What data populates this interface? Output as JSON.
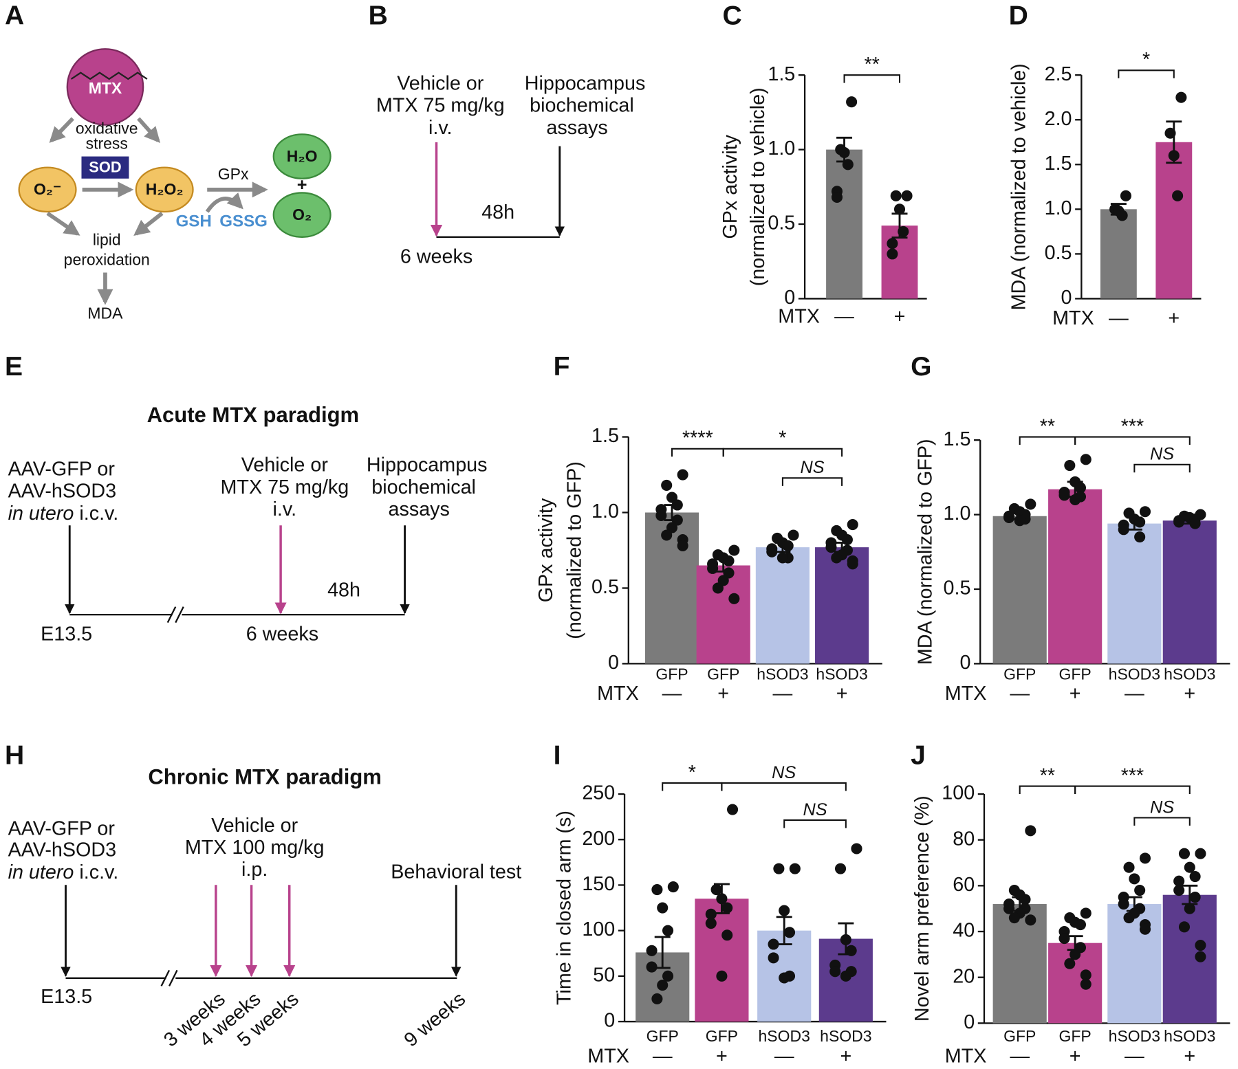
{
  "chart_data": [
    {
      "type": "bar",
      "panel": "C",
      "y_label": [
        "GPx activity",
        "(normalized to vehicle)"
      ],
      "x_label": "MTX",
      "categories": [
        "—",
        "+"
      ],
      "values": [
        1.0,
        0.49
      ],
      "errors": [
        0.08,
        0.08
      ],
      "points": [
        [
          1.32,
          1.0,
          0.98,
          0.9,
          0.72,
          0.68
        ],
        [
          0.69,
          0.69,
          0.6,
          0.45,
          0.37,
          0.3
        ]
      ],
      "colors": [
        "#7b7b7b",
        "#b8428c"
      ],
      "ylim": [
        0,
        1.5
      ],
      "yticks": [
        0,
        0.5,
        {
          "value": 1,
          "label": "1.0"
        },
        1.5
      ],
      "annotations": [
        "**"
      ]
    },
    {
      "type": "bar",
      "panel": "D",
      "y_label": [
        "MDA (normalized to vehicle)"
      ],
      "x_label": "MTX",
      "categories": [
        "—",
        "+"
      ],
      "values": [
        1.0,
        1.75
      ],
      "errors": [
        0.06,
        0.23
      ],
      "points": [
        [
          1.15,
          1.0,
          0.98,
          0.93
        ],
        [
          2.25,
          1.85,
          1.6,
          1.15
        ]
      ],
      "colors": [
        "#7b7b7b",
        "#b8428c"
      ],
      "ylim": [
        0,
        2.5
      ],
      "yticks": [
        0,
        0.5,
        {
          "value": 1,
          "label": "1.0"
        },
        1.5,
        {
          "value": 2,
          "label": "2.0"
        },
        2.5
      ],
      "annotations": [
        "*"
      ]
    },
    {
      "type": "bar",
      "panel": "F",
      "y_label": [
        "GPx activity",
        "(normalized to GFP)"
      ],
      "x_label": "MTX",
      "categories": [
        "GFP",
        "GFP",
        "hSOD3",
        "hSOD3"
      ],
      "mtx": [
        "—",
        "+",
        "—",
        "+"
      ],
      "values": [
        1.0,
        0.65,
        0.77,
        0.77
      ],
      "errors": [
        0.05,
        0.04,
        0.03,
        0.03
      ],
      "points": [
        [
          1.25,
          1.18,
          1.1,
          1.05,
          1.02,
          0.98,
          0.95,
          0.9,
          0.85,
          0.82,
          0.78
        ],
        [
          0.75,
          0.72,
          0.7,
          0.68,
          0.66,
          0.63,
          0.6,
          0.55,
          0.5,
          0.43
        ],
        [
          0.85,
          0.83,
          0.8,
          0.78,
          0.76,
          0.74,
          0.7,
          0.7
        ],
        [
          0.92,
          0.88,
          0.85,
          0.82,
          0.8,
          0.77,
          0.75,
          0.72,
          0.7,
          0.68,
          0.66
        ]
      ],
      "colors": [
        "#7b7b7b",
        "#b8428c",
        "#b6c3e6",
        "#5c3b8d"
      ],
      "ylim": [
        0,
        1.5
      ],
      "yticks": [
        0,
        0.5,
        {
          "value": 1,
          "label": "1.0"
        },
        1.5
      ],
      "annotations": [
        "****",
        "*",
        "NS"
      ]
    },
    {
      "type": "bar",
      "panel": "G",
      "y_label": [
        "MDA (normalized to GFP)"
      ],
      "x_label": "MTX",
      "categories": [
        "GFP",
        "GFP",
        "hSOD3",
        "hSOD3"
      ],
      "mtx": [
        "—",
        "+",
        "—",
        "+"
      ],
      "values": [
        0.99,
        1.17,
        0.94,
        0.96
      ],
      "errors": [
        0.02,
        0.05,
        0.04,
        0.02
      ],
      "points": [
        [
          1.07,
          1.04,
          1.02,
          1.0,
          0.99,
          0.98,
          0.97,
          0.96
        ],
        [
          1.37,
          1.33,
          1.22,
          1.18,
          1.15,
          1.13,
          1.12,
          1.1
        ],
        [
          1.02,
          1.01,
          0.97,
          0.95,
          0.93,
          0.9,
          0.85
        ],
        [
          1.0,
          0.99,
          0.98,
          0.97,
          0.96,
          0.95,
          0.94
        ]
      ],
      "colors": [
        "#7b7b7b",
        "#b8428c",
        "#b6c3e6",
        "#5c3b8d"
      ],
      "ylim": [
        0,
        1.5
      ],
      "yticks": [
        0,
        0.5,
        {
          "value": 1,
          "label": "1.0"
        },
        1.5
      ],
      "annotations": [
        "**",
        "***",
        "NS"
      ]
    },
    {
      "type": "bar",
      "panel": "I",
      "y_label": [
        "Time in closed arm (s)"
      ],
      "x_label": "MTX",
      "categories": [
        "GFP",
        "GFP",
        "hSOD3",
        "hSOD3"
      ],
      "mtx": [
        "—",
        "+",
        "—",
        "+"
      ],
      "values": [
        76,
        135,
        100,
        91
      ],
      "errors": [
        17,
        16,
        15,
        17
      ],
      "points": [
        [
          148,
          145,
          125,
          100,
          78,
          60,
          50,
          40,
          25
        ],
        [
          233,
          145,
          135,
          125,
          118,
          108,
          95,
          50
        ],
        [
          168,
          168,
          122,
          98,
          85,
          70,
          50,
          48
        ],
        [
          190,
          168,
          90,
          78,
          62,
          55,
          55,
          50
        ]
      ],
      "colors": [
        "#7b7b7b",
        "#b8428c",
        "#b6c3e6",
        "#5c3b8d"
      ],
      "ylim": [
        0,
        250
      ],
      "yticks": [
        0,
        50,
        100,
        150,
        200,
        250
      ],
      "annotations": [
        "*",
        "NS",
        "NS"
      ]
    },
    {
      "type": "bar",
      "panel": "J",
      "y_label": [
        "Novel arm preference (%)"
      ],
      "x_label": "MTX",
      "categories": [
        "GFP",
        "GFP",
        "hSOD3",
        "hSOD3"
      ],
      "mtx": [
        "—",
        "+",
        "—",
        "+"
      ],
      "values": [
        52,
        35,
        52,
        56
      ],
      "errors": [
        3,
        3,
        3,
        4
      ],
      "points": [
        [
          84,
          58,
          56,
          54,
          52,
          50,
          50,
          48,
          46,
          45
        ],
        [
          48,
          46,
          44,
          43,
          40,
          37,
          33,
          30,
          26,
          21,
          17
        ],
        [
          72,
          68,
          63,
          58,
          55,
          52,
          50,
          48,
          46,
          43,
          41
        ],
        [
          74,
          74,
          68,
          64,
          62,
          58,
          55,
          50,
          42,
          34,
          29
        ]
      ],
      "colors": [
        "#7b7b7b",
        "#b8428c",
        "#b6c3e6",
        "#5c3b8d"
      ],
      "ylim": [
        0,
        100
      ],
      "yticks": [
        0,
        20,
        40,
        60,
        80,
        100
      ],
      "annotations": [
        "**",
        "***",
        "NS"
      ]
    }
  ],
  "diagrams": {
    "a": {
      "panel": "A",
      "mtx": "MTX",
      "stress": [
        "oxidative",
        "stress"
      ],
      "sod": "SOD",
      "superoxide": "O₂⁻",
      "peroxide": "H₂O₂",
      "gpx": "GPx",
      "water": "H₂O",
      "plus": "+",
      "oxygen": "O₂",
      "gsh": "GSH",
      "gssg": "GSSG",
      "lipid": [
        "lipid",
        "peroxidation"
      ],
      "mda": "MDA"
    },
    "b": {
      "panel": "B",
      "treatment": [
        "Vehicle or",
        "MTX 75 mg/kg",
        "i.v."
      ],
      "assay": [
        "Hippocampus",
        "biochemical",
        "assays"
      ],
      "interval": "48h",
      "age": "6 weeks"
    },
    "e": {
      "panel": "E",
      "title": "Acute MTX paradigm",
      "injection": [
        "AAV-GFP or",
        "AAV-hSOD3",
        "in utero",
        " i.c.v."
      ],
      "treatment": [
        "Vehicle or",
        "MTX 75 mg/kg",
        "i.v."
      ],
      "assay": [
        "Hippocampus",
        "biochemical",
        "assays"
      ],
      "interval": "48h",
      "start": "E13.5",
      "age": "6 weeks"
    },
    "h": {
      "panel": "H",
      "title": "Chronic MTX paradigm",
      "injection": [
        "AAV-GFP or",
        "AAV-hSOD3",
        "in utero",
        " i.c.v."
      ],
      "treatment": [
        "Vehicle or",
        "MTX 100 mg/kg",
        "i.p."
      ],
      "test": "Behavioral test",
      "start": "E13.5",
      "ages": [
        "3 weeks",
        "4 weeks",
        "5 weeks",
        "9 weeks"
      ]
    }
  }
}
